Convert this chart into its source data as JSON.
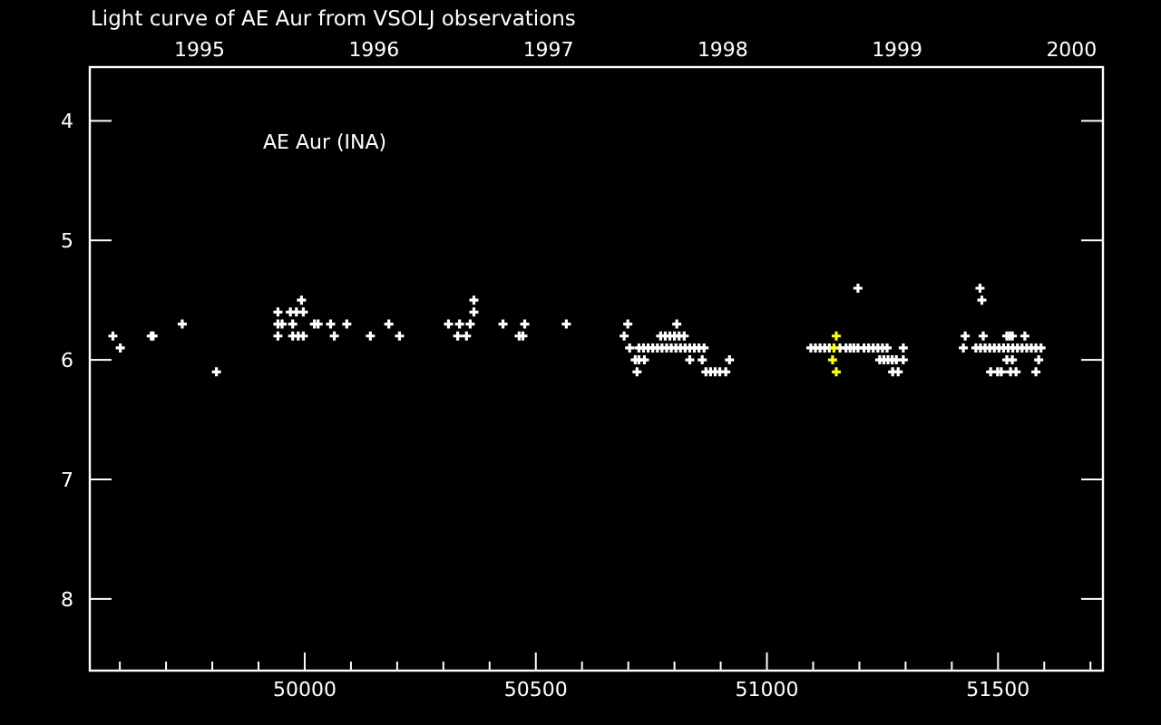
{
  "chart_data": {
    "type": "scatter",
    "title": "Light curve of AE Aur from VSOLJ observations",
    "annotations": [
      "AE Aur (INA)"
    ],
    "marker": "cross",
    "grid": false,
    "xlim": [
      49535,
      51727
    ],
    "ylim": [
      8.6,
      3.55
    ],
    "xticks": [
      {
        "value": 49600,
        "label": null
      },
      {
        "value": 49700,
        "label": null
      },
      {
        "value": 49800,
        "label": null
      },
      {
        "value": 49900,
        "label": null
      },
      50000,
      {
        "value": 50100,
        "label": null
      },
      {
        "value": 50200,
        "label": null
      },
      {
        "value": 50300,
        "label": null
      },
      {
        "value": 50400,
        "label": null
      },
      50500,
      {
        "value": 50600,
        "label": null
      },
      {
        "value": 50700,
        "label": null
      },
      {
        "value": 50800,
        "label": null
      },
      {
        "value": 50900,
        "label": null
      },
      51000,
      {
        "value": 51100,
        "label": null
      },
      {
        "value": 51200,
        "label": null
      },
      {
        "value": 51300,
        "label": null
      },
      {
        "value": 51400,
        "label": null
      },
      51500,
      {
        "value": 51600,
        "label": null
      },
      {
        "value": 51700,
        "label": null
      }
    ],
    "yticks": [
      4,
      5,
      6,
      7,
      8
    ],
    "x2lim": [
      1994.37,
      2000.18
    ],
    "x2ticks": [
      1995,
      1996,
      1997,
      1998,
      1999,
      2000
    ],
    "series": [
      {
        "color": "#ffffff",
        "x": [
          49585,
          49601,
          49668,
          49672,
          49735,
          49809,
          49942,
          49942,
          49942,
          49951,
          49969,
          49982,
          49997,
          49993,
          49974,
          49974,
          49986,
          49997,
          50021,
          50029,
          50056,
          50064,
          50091,
          50142,
          50182,
          50205,
          50311,
          50331,
          50335,
          50350,
          50358,
          50366,
          50366,
          50429,
          50464,
          50472,
          50476,
          50566,
          50691,
          50699,
          50703,
          50715,
          50723,
          50735,
          50719,
          50723,
          50733,
          50743,
          50753,
          50763,
          50773,
          50783,
          50793,
          50803,
          50813,
          50823,
          50833,
          50843,
          50853,
          50864,
          50770,
          50780,
          50790,
          50800,
          50810,
          50821,
          50805,
          50833,
          50860,
          50919,
          50868,
          50878,
          50888,
          50898,
          50911,
          51095,
          51105,
          51115,
          51125,
          51135,
          51158,
          51171,
          51180,
          51188,
          51197,
          51210,
          51220,
          51230,
          51240,
          51250,
          51260,
          51295,
          51197,
          51244,
          51253,
          51262,
          51271,
          51280,
          51295,
          51272,
          51284,
          51461,
          51465,
          51429,
          51468,
          51519,
          51525,
          51531,
          51558,
          51425,
          51452,
          51462,
          51472,
          51482,
          51492,
          51502,
          51512,
          51522,
          51532,
          51542,
          51552,
          51562,
          51572,
          51582,
          51593,
          51519,
          51531,
          51588,
          51484,
          51499,
          51507,
          51527,
          51539,
          51582
        ],
        "values": [
          5.8,
          5.9,
          5.8,
          5.8,
          5.7,
          6.1,
          5.6,
          5.7,
          5.8,
          5.7,
          5.6,
          5.6,
          5.6,
          5.5,
          5.7,
          5.8,
          5.8,
          5.8,
          5.7,
          5.7,
          5.7,
          5.8,
          5.7,
          5.8,
          5.7,
          5.8,
          5.7,
          5.8,
          5.7,
          5.8,
          5.7,
          5.6,
          5.5,
          5.7,
          5.8,
          5.8,
          5.7,
          5.7,
          5.8,
          5.7,
          5.9,
          6.0,
          6.0,
          6.0,
          6.1,
          5.9,
          5.9,
          5.9,
          5.9,
          5.9,
          5.9,
          5.9,
          5.9,
          5.9,
          5.9,
          5.9,
          5.9,
          5.9,
          5.9,
          5.9,
          5.8,
          5.8,
          5.8,
          5.8,
          5.8,
          5.8,
          5.7,
          6.0,
          6.0,
          6.0,
          6.1,
          6.1,
          6.1,
          6.1,
          6.1,
          5.9,
          5.9,
          5.9,
          5.9,
          5.9,
          5.9,
          5.9,
          5.9,
          5.9,
          5.9,
          5.9,
          5.9,
          5.9,
          5.9,
          5.9,
          5.9,
          5.9,
          5.4,
          6.0,
          6.0,
          6.0,
          6.0,
          6.0,
          6.0,
          6.1,
          6.1,
          5.4,
          5.5,
          5.8,
          5.8,
          5.8,
          5.8,
          5.8,
          5.8,
          5.9,
          5.9,
          5.9,
          5.9,
          5.9,
          5.9,
          5.9,
          5.9,
          5.9,
          5.9,
          5.9,
          5.9,
          5.9,
          5.9,
          5.9,
          5.9,
          6.0,
          6.0,
          6.0,
          6.1,
          6.1,
          6.1,
          6.1,
          6.1,
          6.1
        ]
      },
      {
        "color": "#ffff00",
        "x": [
          51150,
          51145,
          51142,
          51150
        ],
        "values": [
          5.8,
          5.9,
          6.0,
          6.1
        ]
      }
    ]
  }
}
